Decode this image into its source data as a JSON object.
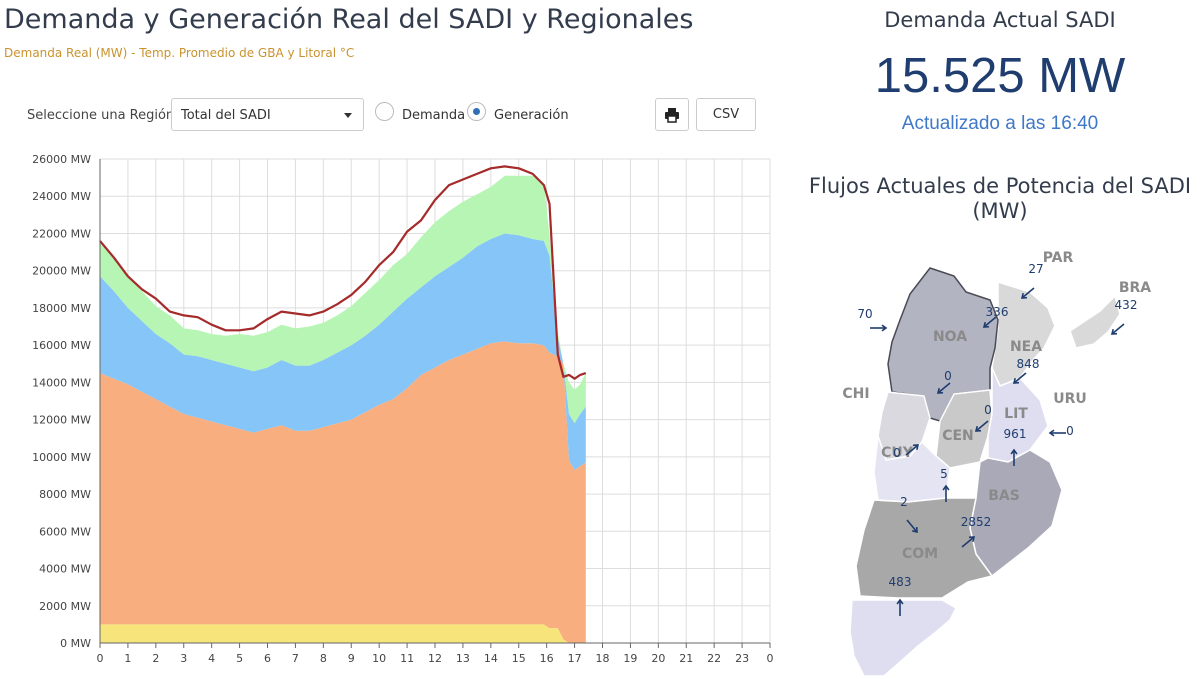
{
  "header": {
    "title": "Demanda y Generación Real del SADI y Regionales",
    "subtitle": "Demanda Real (MW) - Temp. Promedio de GBA y Litoral °C"
  },
  "controls": {
    "region_label": "Seleccione una Región",
    "region_value": "Total del SADI",
    "radio_demanda": "Demanda",
    "radio_generacion": "Generación",
    "csv_label": "CSV"
  },
  "summary": {
    "title": "Demanda Actual SADI",
    "value": "15.525 MW",
    "updated": "Actualizado a las 16:40"
  },
  "flows": {
    "title": "Flujos Actuales de Potencia del SADI (MW)",
    "regions": [
      {
        "name": "PAR"
      },
      {
        "name": "BRA"
      },
      {
        "name": "NOA"
      },
      {
        "name": "NEA"
      },
      {
        "name": "CHI"
      },
      {
        "name": "URU"
      },
      {
        "name": "LIT"
      },
      {
        "name": "CEN"
      },
      {
        "name": "CUY"
      },
      {
        "name": "BAS"
      },
      {
        "name": "COM"
      }
    ],
    "values": [
      {
        "value": "27",
        "dir": "sw"
      },
      {
        "value": "432",
        "dir": "sw"
      },
      {
        "value": "70",
        "dir": "e"
      },
      {
        "value": "336",
        "dir": "sw"
      },
      {
        "value": "848",
        "dir": "sw"
      },
      {
        "value": "0",
        "dir": "sw"
      },
      {
        "value": "0",
        "dir": "sw"
      },
      {
        "value": "0",
        "dir": "w"
      },
      {
        "value": "961",
        "dir": "n"
      },
      {
        "value": "0",
        "dir": "ne"
      },
      {
        "value": "5",
        "dir": "n"
      },
      {
        "value": "2",
        "dir": "se"
      },
      {
        "value": "2852",
        "dir": "ne"
      },
      {
        "value": "483",
        "dir": "n"
      }
    ]
  },
  "chart_data": {
    "type": "area",
    "ylim": [
      0,
      26000
    ],
    "xlim": [
      0,
      24
    ],
    "y_tick_labels": [
      "0 MW",
      "2000 MW",
      "4000 MW",
      "6000 MW",
      "8000 MW",
      "10000 MW",
      "12000 MW",
      "14000 MW",
      "16000 MW",
      "18000 MW",
      "20000 MW",
      "22000 MW",
      "24000 MW",
      "26000 MW"
    ],
    "x_tick_labels": [
      "0",
      "1",
      "2",
      "3",
      "4",
      "5",
      "6",
      "7",
      "8",
      "9",
      "10",
      "11",
      "12",
      "13",
      "14",
      "15",
      "16",
      "17",
      "18",
      "19",
      "20",
      "21",
      "22",
      "23",
      "0"
    ],
    "grid": true,
    "stacked": true,
    "x": [
      0,
      0.5,
      1,
      1.5,
      2,
      2.5,
      3,
      3.5,
      4,
      4.5,
      5,
      5.5,
      6,
      6.5,
      7,
      7.5,
      8,
      8.5,
      9,
      9.5,
      10,
      10.5,
      11,
      11.5,
      12,
      12.5,
      13,
      13.5,
      14,
      14.5,
      15,
      15.5,
      15.9,
      16.1,
      16.4,
      16.6,
      16.8,
      17,
      17.2,
      17.4
    ],
    "series": [
      {
        "color": "#f7e57c",
        "values": [
          1000,
          1000,
          1000,
          1000,
          1000,
          1000,
          1000,
          1000,
          1000,
          1000,
          1000,
          1000,
          1000,
          1000,
          1000,
          1000,
          1000,
          1000,
          1000,
          1000,
          1000,
          1000,
          1000,
          1000,
          1000,
          1000,
          1000,
          1000,
          1000,
          1000,
          1000,
          1000,
          1000,
          800,
          800,
          200,
          0,
          0,
          0,
          0
        ]
      },
      {
        "color": "#f8ae7e",
        "values": [
          13500,
          13200,
          12900,
          12500,
          12100,
          11700,
          11300,
          11100,
          10900,
          10700,
          10500,
          10300,
          10500,
          10700,
          10400,
          10400,
          10600,
          10800,
          11000,
          11400,
          11800,
          12100,
          12700,
          13400,
          13800,
          14200,
          14500,
          14800,
          15100,
          15200,
          15100,
          15100,
          15000,
          14800,
          14600,
          14800,
          9800,
          9300,
          9500,
          9700
        ]
      },
      {
        "color": "#86c5f7",
        "values": [
          5200,
          4700,
          4100,
          3800,
          3500,
          3400,
          3200,
          3300,
          3300,
          3300,
          3300,
          3300,
          3300,
          3500,
          3500,
          3500,
          3600,
          3800,
          4000,
          4100,
          4300,
          4700,
          4800,
          4700,
          4900,
          5000,
          5200,
          5500,
          5600,
          5800,
          5800,
          5600,
          5600,
          5200,
          1000,
          0,
          2500,
          2500,
          2800,
          3000
        ]
      },
      {
        "color": "#b6f5b4",
        "values": [
          1900,
          1800,
          1700,
          1600,
          1500,
          1500,
          1400,
          1400,
          1400,
          1500,
          1800,
          1900,
          1900,
          1900,
          2000,
          2100,
          2000,
          2000,
          2100,
          2300,
          2400,
          2500,
          2400,
          2700,
          2900,
          3000,
          3000,
          2800,
          2800,
          3100,
          3200,
          3400,
          3100,
          1100,
          300,
          0,
          1700,
          1800,
          1600,
          1800
        ]
      }
    ],
    "demand_line": {
      "color": "#a52a2a",
      "values": [
        21600,
        20700,
        19700,
        19000,
        18500,
        17800,
        17600,
        17500,
        17100,
        16800,
        16800,
        16900,
        17400,
        17800,
        17700,
        17600,
        17800,
        18200,
        18700,
        19400,
        20300,
        21000,
        22100,
        22700,
        23800,
        24600,
        24900,
        25200,
        25500,
        25600,
        25500,
        25200,
        24600,
        23600,
        15500,
        14300,
        14400,
        14200,
        14400,
        14500
      ]
    }
  }
}
